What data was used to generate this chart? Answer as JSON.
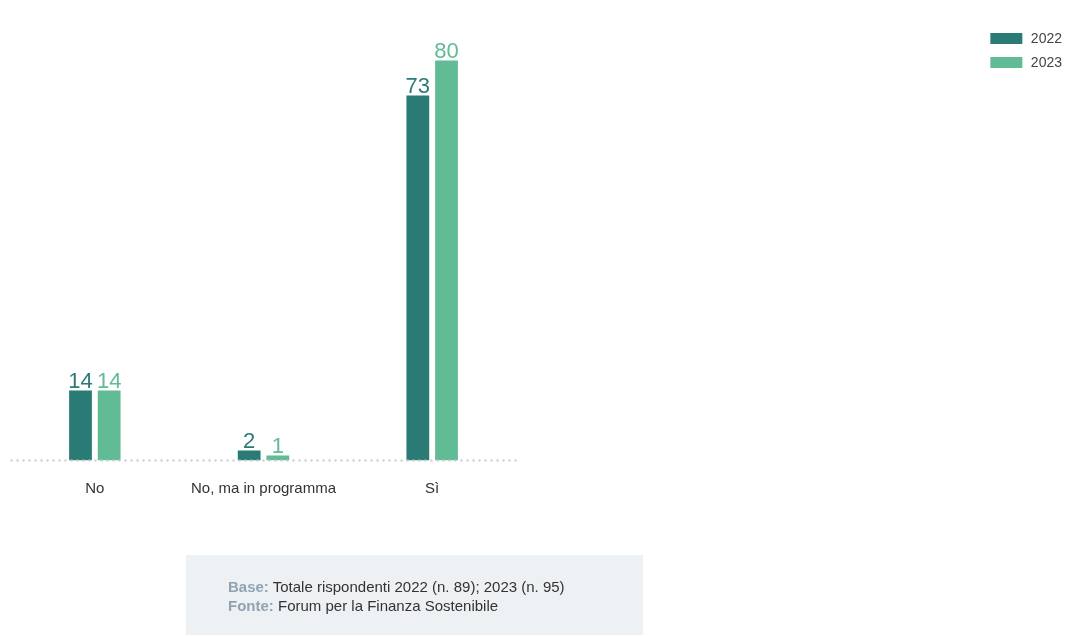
{
  "chart_data": {
    "type": "bar",
    "categories": [
      "No",
      "No, ma in programma",
      "Sì"
    ],
    "series": [
      {
        "name": "2022",
        "color": "#2a7b76",
        "values": [
          14,
          2,
          73
        ]
      },
      {
        "name": "2023",
        "color": "#61bb95",
        "values": [
          14,
          1,
          80
        ]
      }
    ],
    "data_labels": true,
    "legend": "top right",
    "grid": false,
    "annotations": [
      "Base: Totale rispondenti 2022 (n. 89); 2023 (n. 95)",
      "Fonte: Forum per la Finanza Sostenibile"
    ]
  }
}
